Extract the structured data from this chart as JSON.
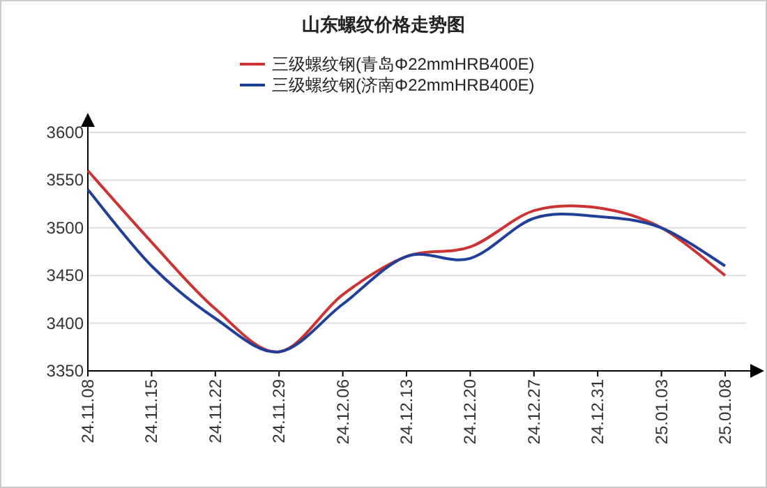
{
  "chart_data": {
    "type": "line",
    "title": "山东螺纹价格走势图",
    "categories": [
      "24.11.08",
      "24.11.15",
      "24.11.22",
      "24.11.29",
      "24.12.06",
      "24.12.13",
      "24.12.20",
      "24.12.27",
      "24.12.31",
      "25.01.03",
      "25.01.08"
    ],
    "series": [
      {
        "name": "三级螺纹钢(青岛Φ22mmHRB400E)",
        "color": "#cc3333",
        "values": [
          3560,
          3485,
          3415,
          3370,
          3430,
          3470,
          3480,
          3518,
          3521,
          3500,
          3450
        ]
      },
      {
        "name": "三级螺纹钢(济南Φ22mmHRB400E)",
        "color": "#1f3f99",
        "values": [
          3540,
          3460,
          3405,
          3370,
          3420,
          3470,
          3468,
          3510,
          3512,
          3500,
          3460
        ]
      }
    ],
    "ylim": [
      3350,
      3600
    ],
    "yticks": [
      3350,
      3400,
      3450,
      3500,
      3550,
      3600
    ],
    "grid": "y",
    "legend": "top",
    "marker": "none",
    "line_style": "solid"
  }
}
